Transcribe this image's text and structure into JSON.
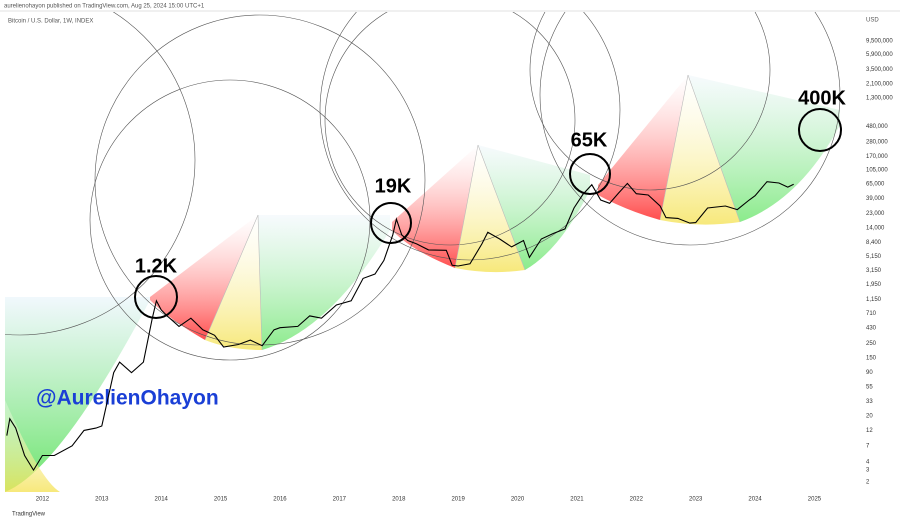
{
  "header": {
    "publisher": "aurelienohayon published on TradingView.com, Aug 25, 2024 15:00 UTC+1",
    "symbol": "Bitcoin / U.S. Dollar, 1W, INDEX",
    "brand": "TradingView"
  },
  "chart_data": {
    "type": "line",
    "color": "#000000",
    "log_scale": true,
    "grid": false,
    "y_axis_label": "USD",
    "annotations": [
      "1.2K",
      "19K",
      "65K",
      "400K"
    ],
    "watermark": "@AurelienOhayon",
    "xlim": [
      2011.37,
      2025.8
    ],
    "xticks": [
      2012,
      2013,
      2014,
      2015,
      2016,
      2017,
      2018,
      2019,
      2020,
      2021,
      2022,
      2023,
      2024,
      2025
    ],
    "ylim": [
      1.4,
      26000000
    ],
    "yticks": [
      {
        "value": 9500000,
        "label": "9,500,000"
      },
      {
        "value": 5900000,
        "label": "5,900,000"
      },
      {
        "value": 3500000,
        "label": "3,500,000"
      },
      {
        "value": 2100000,
        "label": "2,100,000"
      },
      {
        "value": 1300000,
        "label": "1,300,000"
      },
      {
        "value": 480000,
        "label": "480,000"
      },
      {
        "value": 280000,
        "label": "280,000"
      },
      {
        "value": 170000,
        "label": "170,000"
      },
      {
        "value": 105000,
        "label": "105,000"
      },
      {
        "value": 65000,
        "label": "65,000"
      },
      {
        "value": 39000,
        "label": "39,000"
      },
      {
        "value": 23000,
        "label": "23,000"
      },
      {
        "value": 14000,
        "label": "14,000"
      },
      {
        "value": 8400,
        "label": "8,400"
      },
      {
        "value": 5150,
        "label": "5,150"
      },
      {
        "value": 3150,
        "label": "3,150"
      },
      {
        "value": 1950,
        "label": "1,950"
      },
      {
        "value": 1150,
        "label": "1,150"
      },
      710,
      430,
      250,
      150,
      90,
      55,
      33,
      20,
      12,
      7,
      4,
      3,
      2
    ],
    "x": [
      2011.4,
      2011.45,
      2011.55,
      2011.7,
      2011.85,
      2012.0,
      2012.2,
      2012.5,
      2012.7,
      2012.9,
      2013.0,
      2013.2,
      2013.3,
      2013.5,
      2013.7,
      2013.85,
      2013.92,
      2014.0,
      2014.1,
      2014.3,
      2014.5,
      2014.7,
      2014.9,
      2015.05,
      2015.3,
      2015.5,
      2015.7,
      2015.9,
      2016.0,
      2016.3,
      2016.5,
      2016.7,
      2016.95,
      2017.2,
      2017.4,
      2017.6,
      2017.75,
      2017.9,
      2017.96,
      2018.05,
      2018.15,
      2018.3,
      2018.5,
      2018.8,
      2018.9,
      2019.0,
      2019.2,
      2019.4,
      2019.5,
      2019.7,
      2019.9,
      2020.1,
      2020.2,
      2020.4,
      2020.6,
      2020.8,
      2020.95,
      2021.1,
      2021.25,
      2021.4,
      2021.55,
      2021.7,
      2021.85,
      2022.0,
      2022.2,
      2022.4,
      2022.5,
      2022.7,
      2022.9,
      2023.0,
      2023.2,
      2023.5,
      2023.7,
      2023.9,
      2024.0,
      2024.2,
      2024.4,
      2024.55,
      2024.65
    ],
    "values": [
      10,
      18,
      13,
      5,
      3,
      5,
      5,
      7,
      12,
      13,
      14,
      90,
      130,
      90,
      130,
      600,
      1100,
      800,
      650,
      450,
      600,
      400,
      330,
      220,
      240,
      280,
      230,
      400,
      430,
      450,
      650,
      600,
      950,
      1100,
      2400,
      2800,
      4500,
      11000,
      19000,
      11000,
      9000,
      8000,
      6500,
      6400,
      3800,
      3700,
      4000,
      8000,
      12000,
      9500,
      7200,
      9000,
      5000,
      9500,
      11500,
      13500,
      28000,
      45000,
      63000,
      37000,
      33000,
      47000,
      66000,
      46000,
      44000,
      30000,
      20000,
      19500,
      16500,
      16800,
      28000,
      30000,
      26500,
      37000,
      43000,
      70000,
      67000,
      58000,
      64000
    ]
  }
}
